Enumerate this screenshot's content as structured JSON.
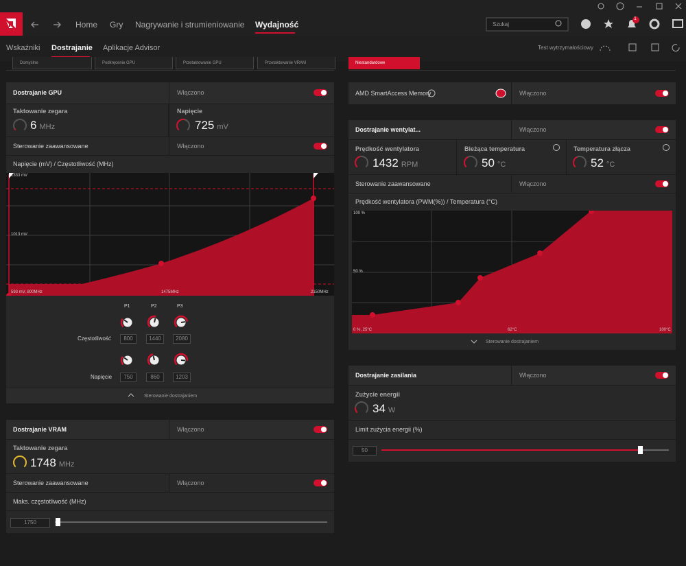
{
  "title_bar": {
    "search_placeholder": "Szukaj",
    "notification_count": 1
  },
  "nav": [
    "Home",
    "Gry",
    "Nagrywanie i strumieniowanie",
    "Wydajność"
  ],
  "tabs": [
    "Wskaźniki",
    "Dostrajanie",
    "Aplikacje Advisor"
  ],
  "stress_test": "Test wytrzymałościowy",
  "presets": [
    "Domyślne",
    "Podkręcenie GPU",
    "Przetaktowanie GPU",
    "Przetaktowanie VRAM",
    "Niestandardowe"
  ],
  "gpu_tuning": {
    "title": "Dostrajanie GPU",
    "status": "Włączono",
    "clock": {
      "label": "Taktowanie zegara",
      "value": 6,
      "unit": "MHz"
    },
    "voltage": {
      "label": "Napięcie",
      "value": 725,
      "unit": "mV"
    },
    "advanced": {
      "label": "Sterowanie zaawansowane",
      "status": "Włączono"
    },
    "curve": {
      "title": "Napięcie (mV) / Częstotliwość (MHz)",
      "y_labels": [
        "1333 mV",
        "1013 mV"
      ],
      "x_labels": [
        "593 mV, 800MHz",
        "1475MHz",
        "2150MHz"
      ]
    },
    "points": [
      "P1",
      "P2",
      "P3"
    ],
    "frequency": {
      "label": "Częstotliwość",
      "values": [
        800,
        1440,
        2080
      ]
    },
    "voltage_points": {
      "label": "Napięcie",
      "values": [
        750,
        860,
        1203
      ]
    },
    "footer": "Sterowanie dostrajaniem"
  },
  "vram_tuning": {
    "title": "Dostrajanie VRAM",
    "status": "Włączono",
    "clock": {
      "label": "Taktowanie zegara",
      "value": 1748,
      "unit": "MHz"
    },
    "advanced": {
      "label": "Sterowanie zaawansowane",
      "status": "Włączono"
    },
    "max_freq": {
      "label": "Maks. częstotliwość (MHz)",
      "value": 1750
    }
  },
  "sam": {
    "label": "AMD SmartAccess Memory",
    "status": "Włączono"
  },
  "fan_tuning": {
    "title": "Dostrajanie wentylat...",
    "status": "Włączono",
    "fan_speed": {
      "label": "Prędkość wentylatora",
      "value": 1432,
      "unit": "RPM"
    },
    "temperature": {
      "label": "Bieżąca temperatura",
      "value": 50,
      "unit": "°C"
    },
    "junction": {
      "label": "Temperatura złącza",
      "value": 52,
      "unit": "°C"
    },
    "advanced": {
      "label": "Sterowanie zaawansowane",
      "status": "Włączono"
    },
    "curve": {
      "title": "Prędkość wentylatora (PWM(%)) / Temperatura (°C)",
      "y_labels": [
        "100 %",
        "50 %"
      ],
      "x_labels": [
        "0 %, 25°C",
        "62°C",
        "100°C"
      ]
    },
    "footer": "Sterowanie dostrajaniem"
  },
  "power_tuning": {
    "title": "Dostrajanie zasilania",
    "status": "Włączono",
    "power": {
      "label": "Zużycie energii",
      "value": 34,
      "unit": "W"
    },
    "limit": {
      "label": "Limit zużycia energii (%)",
      "value": 50
    }
  }
}
